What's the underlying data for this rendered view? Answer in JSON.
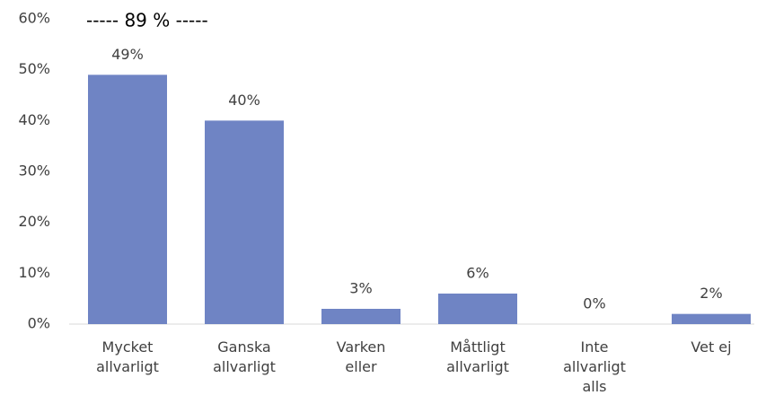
{
  "chart_data": {
    "type": "bar",
    "annotation": "----- 89 % -----",
    "categories": [
      "Mycket\nallvarligt",
      "Ganska\nallvarligt",
      "Varken\neller",
      "Måttligt\nallvarligt",
      "Inte\nallvarligt\nalls",
      "Vet ej"
    ],
    "values": [
      49,
      40,
      3,
      6,
      0,
      2
    ],
    "value_labels": [
      "49%",
      "40%",
      "3%",
      "6%",
      "0%",
      "2%"
    ],
    "color": "#6f84c4",
    "ylim": [
      0,
      60
    ],
    "yticks": [
      {
        "value": 0,
        "label": "0%"
      },
      {
        "value": 10,
        "label": "10%"
      },
      {
        "value": 20,
        "label": "20%"
      },
      {
        "value": 30,
        "label": "30%"
      },
      {
        "value": 40,
        "label": "40%"
      },
      {
        "value": 50,
        "label": "50%"
      },
      {
        "value": 60,
        "label": "60%"
      }
    ],
    "grid": false
  }
}
